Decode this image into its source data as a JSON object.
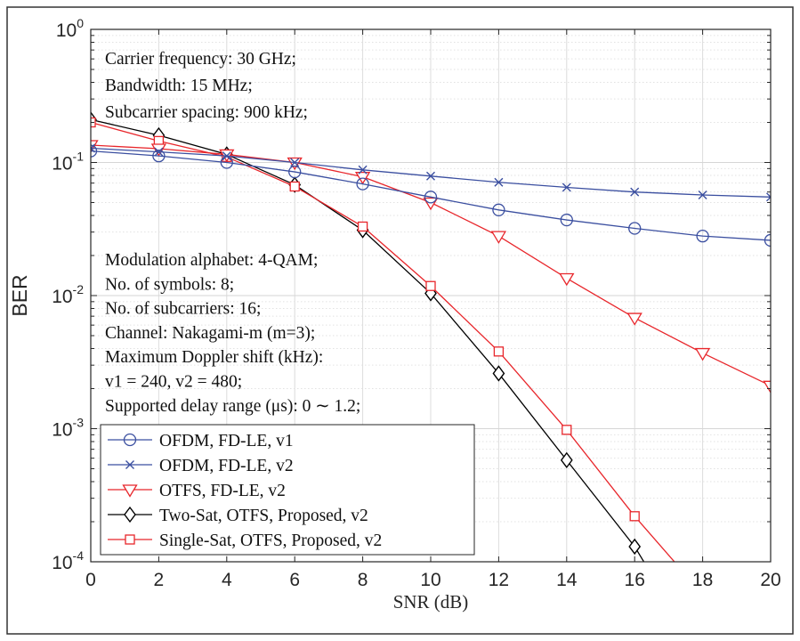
{
  "chart_data": {
    "type": "line",
    "xlabel": "SNR (dB)",
    "ylabel": "BER",
    "xlim": [
      0,
      20
    ],
    "ylim": [
      0.0001,
      1
    ],
    "yscale": "log",
    "grid": true,
    "legend_position": "bottom-left",
    "x_ticks": [
      "0",
      "2",
      "4",
      "6",
      "8",
      "10",
      "12",
      "14",
      "16",
      "18",
      "20"
    ],
    "y_ticks": [
      {
        "base": "10",
        "exp": "0"
      },
      {
        "base": "10",
        "exp": "-1"
      },
      {
        "base": "10",
        "exp": "-2"
      },
      {
        "base": "10",
        "exp": "-3"
      },
      {
        "base": "10",
        "exp": "-4"
      }
    ],
    "annotations_top": [
      "Carrier frequency: 30 GHz;",
      "Bandwidth: 15 MHz;",
      "Subcarrier spacing: 900 kHz;"
    ],
    "annotations_mid": [
      "Modulation alphabet: 4-QAM;",
      "No. of symbols: 8;",
      "No. of subcarriers: 16;",
      "Channel: Nakagami-m (m=3);",
      "Maximum Doppler shift (kHz):",
      "v1 = 240, v2 = 480;",
      "Supported delay range (μs): 0 ∼ 1.2;"
    ],
    "series": [
      {
        "name": "OFDM, FD-LE, v1",
        "color": "#3b4fa0",
        "marker": "circle",
        "x": [
          0,
          2,
          4,
          6,
          8,
          10,
          12,
          14,
          16,
          18,
          20
        ],
        "values": [
          0.122,
          0.112,
          0.1,
          0.085,
          0.069,
          0.055,
          0.044,
          0.037,
          0.032,
          0.028,
          0.026
        ]
      },
      {
        "name": "OFDM, FD-LE, v2",
        "color": "#3b4fa0",
        "marker": "x",
        "x": [
          0,
          2,
          4,
          6,
          8,
          10,
          12,
          14,
          16,
          18,
          20
        ],
        "values": [
          0.128,
          0.12,
          0.112,
          0.1,
          0.088,
          0.079,
          0.071,
          0.065,
          0.06,
          0.057,
          0.055
        ]
      },
      {
        "name": "OTFS, FD-LE, v2",
        "color": "#e8262b",
        "marker": "triangle-down",
        "x": [
          0,
          2,
          4,
          6,
          8,
          10,
          12,
          14,
          16,
          18,
          20
        ],
        "values": [
          0.135,
          0.127,
          0.115,
          0.1,
          0.078,
          0.05,
          0.028,
          0.0135,
          0.0068,
          0.0037,
          0.0021
        ]
      },
      {
        "name": "Two-Sat, OTFS, Proposed, v2",
        "color": "#000000",
        "marker": "diamond",
        "x": [
          0,
          2,
          4,
          6,
          8,
          10,
          12,
          14,
          16,
          16.5
        ],
        "values": [
          0.21,
          0.16,
          0.115,
          0.068,
          0.031,
          0.0104,
          0.0026,
          0.00058,
          0.00013,
          8e-05
        ]
      },
      {
        "name": "Single-Sat, OTFS, Proposed, v2",
        "color": "#e8262b",
        "marker": "square",
        "x": [
          0,
          2,
          4,
          6,
          8,
          10,
          12,
          14,
          16,
          17.5
        ],
        "values": [
          0.2,
          0.145,
          0.11,
          0.066,
          0.033,
          0.0118,
          0.0038,
          0.00098,
          0.00022,
          8e-05
        ]
      }
    ]
  }
}
